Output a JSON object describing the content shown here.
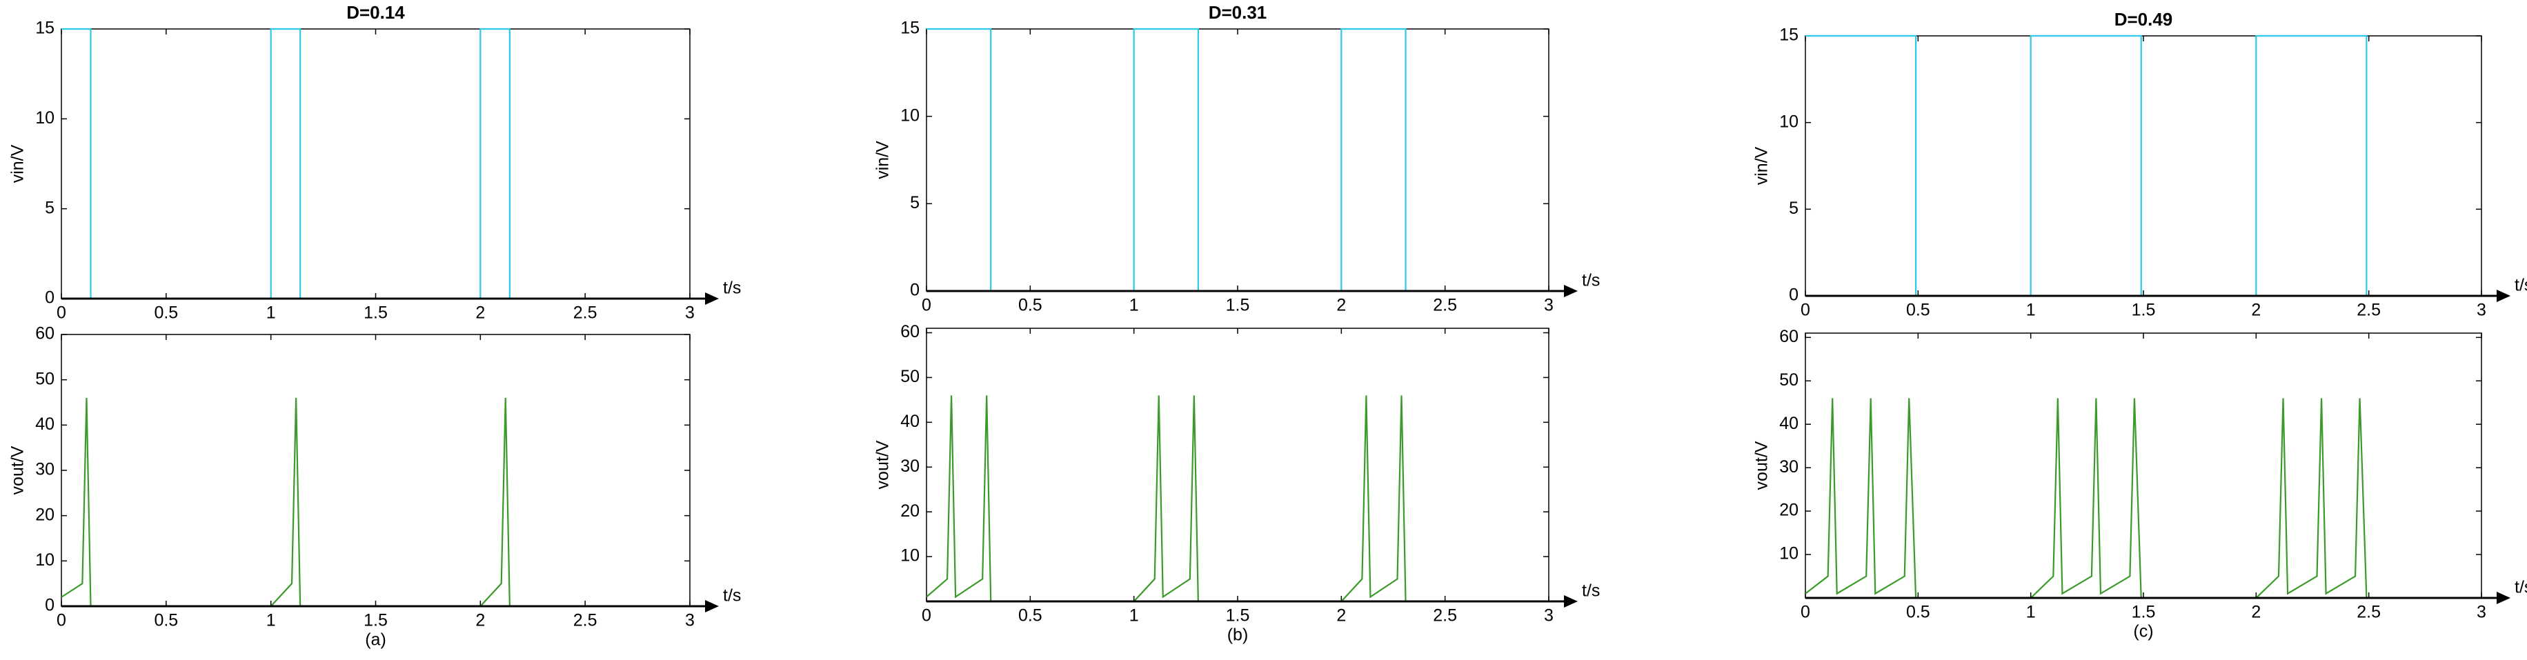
{
  "chart_data": [
    {
      "type": "line",
      "title": "D=0.14",
      "ylabel": "vin/V",
      "xlabel": "t/s",
      "color": "#2ec8e8",
      "x": [
        0,
        0.14,
        0.14,
        1,
        1,
        1.14,
        1.14,
        2,
        2,
        2.14,
        2.14,
        3
      ],
      "values": [
        15,
        15,
        0,
        0,
        15,
        15,
        0,
        0,
        15,
        15,
        0,
        0
      ],
      "xlim": [
        0,
        3
      ],
      "ylim": [
        0,
        15
      ],
      "xticks": [
        0,
        0.5,
        1,
        1.5,
        2,
        2.5,
        3
      ],
      "yticks": [
        0,
        5,
        10,
        15
      ]
    },
    {
      "type": "line",
      "ylabel": "vout/V",
      "xlabel": "t/s",
      "caption": "(a)",
      "color": "#3a9a2a",
      "x": [
        0,
        0.1,
        0.12,
        0.14,
        1,
        1.1,
        1.12,
        1.14,
        2,
        2.1,
        2.12,
        2.14,
        3
      ],
      "values": [
        2,
        5,
        46,
        0,
        0,
        5,
        46,
        0,
        0,
        5,
        46,
        0,
        0
      ],
      "xlim": [
        0,
        3
      ],
      "ylim": [
        0,
        60
      ],
      "xticks": [
        0,
        0.5,
        1,
        1.5,
        2,
        2.5,
        3
      ],
      "yticks": [
        0,
        10,
        20,
        30,
        40,
        50,
        60
      ]
    },
    {
      "type": "line",
      "title": "D=0.31",
      "ylabel": "vin/V",
      "xlabel": "t/s",
      "color": "#2ec8e8",
      "x": [
        0,
        0.31,
        0.31,
        1,
        1,
        1.31,
        1.31,
        2,
        2,
        2.31,
        2.31,
        3
      ],
      "values": [
        15,
        15,
        0,
        0,
        15,
        15,
        0,
        0,
        15,
        15,
        0,
        0
      ],
      "xlim": [
        0,
        3
      ],
      "ylim": [
        0,
        15
      ],
      "xticks": [
        0,
        0.5,
        1,
        1.5,
        2,
        2.5,
        3
      ],
      "yticks": [
        0,
        5,
        10,
        15
      ]
    },
    {
      "type": "line",
      "ylabel": "vout/V",
      "xlabel": "t/s",
      "caption": "(b)",
      "color": "#3a9a2a",
      "x": [
        0,
        0.1,
        0.12,
        0.14,
        0.27,
        0.29,
        0.31,
        1,
        1.1,
        1.12,
        1.14,
        1.27,
        1.29,
        1.31,
        2,
        2.1,
        2.12,
        2.14,
        2.27,
        2.29,
        2.31,
        3
      ],
      "values": [
        1,
        5,
        46,
        1,
        5,
        46,
        0,
        0,
        5,
        46,
        1,
        5,
        46,
        0,
        0,
        5,
        46,
        1,
        5,
        46,
        0,
        0
      ],
      "xlim": [
        0,
        3
      ],
      "ylim": [
        0,
        61
      ],
      "xticks": [
        0,
        0.5,
        1,
        1.5,
        2,
        2.5,
        3
      ],
      "yticks": [
        10,
        20,
        30,
        40,
        50,
        60
      ]
    },
    {
      "type": "line",
      "title": "D=0.49",
      "ylabel": "vin/V",
      "xlabel": "t/s",
      "color": "#2ec8e8",
      "x": [
        0,
        0.49,
        0.49,
        1,
        1,
        1.49,
        1.49,
        2,
        2,
        2.49,
        2.49,
        3
      ],
      "values": [
        15,
        15,
        0,
        0,
        15,
        15,
        0,
        0,
        15,
        15,
        0,
        0
      ],
      "xlim": [
        0,
        3
      ],
      "ylim": [
        0,
        15
      ],
      "xticks": [
        0,
        0.5,
        1,
        1.5,
        2,
        2.5,
        3
      ],
      "yticks": [
        0,
        5,
        10,
        15
      ]
    },
    {
      "type": "line",
      "ylabel": "vout/V",
      "xlabel": "t/s",
      "caption": "(c)",
      "color": "#3a9a2a",
      "x": [
        0,
        0.1,
        0.12,
        0.14,
        0.27,
        0.29,
        0.31,
        0.44,
        0.46,
        0.49,
        1,
        1.1,
        1.12,
        1.14,
        1.27,
        1.29,
        1.31,
        1.44,
        1.46,
        1.49,
        2,
        2.1,
        2.12,
        2.14,
        2.27,
        2.29,
        2.31,
        2.44,
        2.46,
        2.49,
        3
      ],
      "values": [
        1,
        5,
        46,
        1,
        5,
        46,
        1,
        5,
        46,
        0,
        0,
        5,
        46,
        1,
        5,
        46,
        1,
        5,
        46,
        0,
        0,
        5,
        46,
        1,
        5,
        46,
        1,
        5,
        46,
        0,
        0
      ],
      "xlim": [
        0,
        3
      ],
      "ylim": [
        0,
        61
      ],
      "xticks": [
        0,
        0.5,
        1,
        1.5,
        2,
        2.5,
        3
      ],
      "yticks": [
        10,
        20,
        30,
        40,
        50,
        60
      ]
    }
  ]
}
